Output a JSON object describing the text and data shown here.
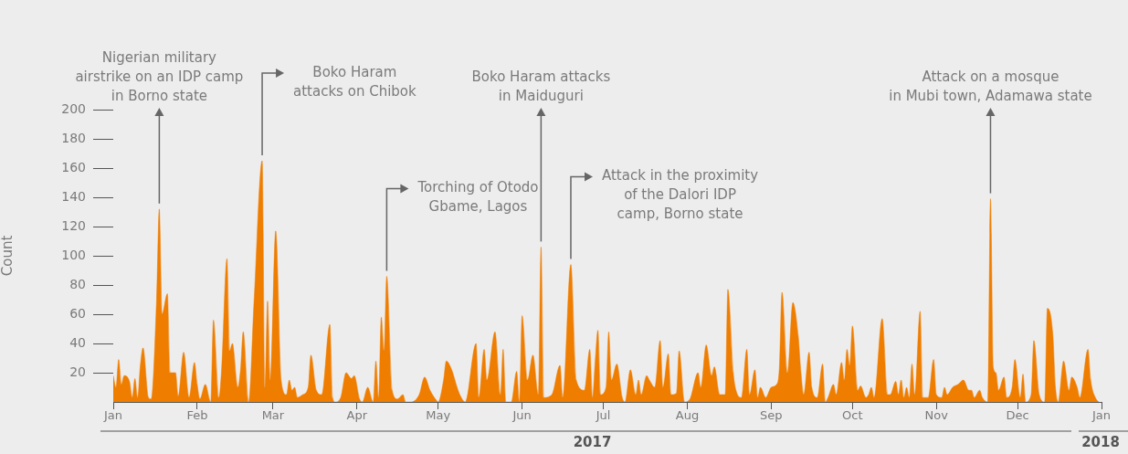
{
  "chart_data": {
    "type": "area",
    "ylabel": "Count",
    "color": "#ef7d00",
    "x": [
      "2017-01-01",
      "2017-01-02",
      "2017-01-03",
      "2017-01-04",
      "2017-01-05",
      "2017-01-07",
      "2017-01-08",
      "2017-01-09",
      "2017-01-10",
      "2017-01-11",
      "2017-01-12",
      "2017-01-14",
      "2017-01-15",
      "2017-01-17",
      "2017-01-18",
      "2017-01-19",
      "2017-01-21",
      "2017-01-22",
      "2017-01-24",
      "2017-01-25",
      "2017-01-27",
      "2017-01-29",
      "2017-01-31",
      "2017-02-01",
      "2017-02-02",
      "2017-02-04",
      "2017-02-06",
      "2017-02-07",
      "2017-02-09",
      "2017-02-10",
      "2017-02-12",
      "2017-02-13",
      "2017-02-14",
      "2017-02-16",
      "2017-02-17",
      "2017-02-18",
      "2017-02-20",
      "2017-02-22",
      "2017-02-25",
      "2017-02-26",
      "2017-02-27",
      "2017-02-28",
      "2017-03-02",
      "2017-03-04",
      "2017-03-06",
      "2017-03-07",
      "2017-03-08",
      "2017-03-09",
      "2017-03-10",
      "2017-03-12",
      "2017-03-14",
      "2017-03-15",
      "2017-03-17",
      "2017-03-19",
      "2017-03-22",
      "2017-03-23",
      "2017-03-24",
      "2017-03-26",
      "2017-03-28",
      "2017-03-30",
      "2017-03-31",
      "2017-04-02",
      "2017-04-03",
      "2017-04-05",
      "2017-04-07",
      "2017-04-08",
      "2017-04-09",
      "2017-04-10",
      "2017-04-11",
      "2017-04-12",
      "2017-04-14",
      "2017-04-16",
      "2017-04-18",
      "2017-04-19",
      "2017-04-21",
      "2017-04-24",
      "2017-04-26",
      "2017-04-28",
      "2017-04-30",
      "2017-05-01",
      "2017-05-03",
      "2017-05-04",
      "2017-05-06",
      "2017-05-08",
      "2017-05-09",
      "2017-05-11",
      "2017-05-15",
      "2017-05-16",
      "2017-05-18",
      "2017-05-19",
      "2017-05-22",
      "2017-05-24",
      "2017-05-25",
      "2017-05-26",
      "2017-05-28",
      "2017-05-30",
      "2017-05-31",
      "2017-06-01",
      "2017-06-03",
      "2017-06-05",
      "2017-06-07",
      "2017-06-08",
      "2017-06-09",
      "2017-06-12",
      "2017-06-15",
      "2017-06-16",
      "2017-06-19",
      "2017-06-21",
      "2017-06-24",
      "2017-06-26",
      "2017-06-27",
      "2017-06-28",
      "2017-06-29",
      "2017-06-30",
      "2017-07-02",
      "2017-07-03",
      "2017-07-04",
      "2017-07-06",
      "2017-07-08",
      "2017-07-09",
      "2017-07-11",
      "2017-07-13",
      "2017-07-14",
      "2017-07-15",
      "2017-07-17",
      "2017-07-18",
      "2017-07-20",
      "2017-07-22",
      "2017-07-23",
      "2017-07-25",
      "2017-07-26",
      "2017-07-28",
      "2017-07-29",
      "2017-07-31",
      "2017-08-02",
      "2017-08-05",
      "2017-08-06",
      "2017-08-08",
      "2017-08-10",
      "2017-08-11",
      "2017-08-13",
      "2017-08-15",
      "2017-08-16",
      "2017-08-18",
      "2017-08-19",
      "2017-08-21",
      "2017-08-23",
      "2017-08-24",
      "2017-08-26",
      "2017-08-27",
      "2017-08-28",
      "2017-08-30",
      "2017-09-01",
      "2017-09-03",
      "2017-09-04",
      "2017-09-05",
      "2017-09-07",
      "2017-09-09",
      "2017-09-11",
      "2017-09-12",
      "2017-09-13",
      "2017-09-15",
      "2017-09-16",
      "2017-09-18",
      "2017-09-20",
      "2017-09-21",
      "2017-09-22",
      "2017-09-24",
      "2017-09-25",
      "2017-09-27",
      "2017-09-28",
      "2017-09-29",
      "2017-09-30",
      "2017-10-01",
      "2017-10-03",
      "2017-10-04",
      "2017-10-06",
      "2017-10-07",
      "2017-10-08",
      "2017-10-09",
      "2017-10-12",
      "2017-10-14",
      "2017-10-15",
      "2017-10-17",
      "2017-10-18",
      "2017-10-19",
      "2017-10-20",
      "2017-10-21",
      "2017-10-22",
      "2017-10-23",
      "2017-10-24",
      "2017-10-26",
      "2017-10-27",
      "2017-10-29",
      "2017-10-31",
      "2017-11-01",
      "2017-11-03",
      "2017-11-04",
      "2017-11-05",
      "2017-11-07",
      "2017-11-09",
      "2017-11-11",
      "2017-11-13",
      "2017-11-14",
      "2017-11-15",
      "2017-11-17",
      "2017-11-18",
      "2017-11-20",
      "2017-11-21",
      "2017-11-22",
      "2017-11-23",
      "2017-11-24",
      "2017-11-26",
      "2017-11-27",
      "2017-11-29",
      "2017-11-30",
      "2017-12-02",
      "2017-12-03",
      "2017-12-04",
      "2017-12-06",
      "2017-12-07",
      "2017-12-09",
      "2017-12-11",
      "2017-12-12",
      "2017-12-14",
      "2017-12-15",
      "2017-12-16",
      "2017-12-18",
      "2017-12-20",
      "2017-12-21",
      "2017-12-23",
      "2017-12-24",
      "2017-12-27",
      "2017-12-28",
      "2017-12-30",
      "2017-12-31"
    ],
    "values": [
      18,
      10,
      29,
      12,
      18,
      14,
      3,
      16,
      3,
      25,
      37,
      3,
      2,
      70,
      132,
      60,
      74,
      20,
      20,
      4,
      34,
      3,
      27,
      12,
      2,
      12,
      0,
      56,
      3,
      22,
      98,
      35,
      40,
      10,
      22,
      48,
      0,
      69,
      165,
      10,
      69,
      15,
      117,
      15,
      5,
      15,
      8,
      10,
      3,
      5,
      10,
      32,
      8,
      5,
      53,
      3,
      0,
      3,
      20,
      16,
      18,
      2,
      0,
      10,
      0,
      28,
      3,
      58,
      35,
      86,
      8,
      2,
      5,
      0,
      0,
      5,
      17,
      8,
      2,
      0,
      15,
      28,
      22,
      10,
      5,
      0,
      40,
      3,
      36,
      15,
      48,
      5,
      36,
      0,
      0,
      21,
      0,
      59,
      15,
      32,
      5,
      106,
      3,
      5,
      25,
      3,
      94,
      15,
      8,
      36,
      3,
      28,
      49,
      5,
      10,
      48,
      15,
      26,
      3,
      0,
      22,
      5,
      15,
      5,
      18,
      15,
      10,
      42,
      10,
      33,
      5,
      6,
      35,
      0,
      2,
      20,
      10,
      39,
      18,
      24,
      5,
      5,
      77,
      20,
      8,
      3,
      36,
      5,
      22,
      3,
      10,
      3,
      10,
      12,
      23,
      75,
      20,
      68,
      45,
      20,
      5,
      34,
      10,
      3,
      26,
      0,
      3,
      12,
      5,
      27,
      15,
      36,
      25,
      52,
      8,
      11,
      3,
      5,
      10,
      3,
      57,
      5,
      5,
      14,
      5,
      15,
      3,
      10,
      3,
      26,
      5,
      62,
      3,
      3,
      29,
      5,
      3,
      10,
      5,
      10,
      12,
      15,
      8,
      8,
      3,
      8,
      3,
      0,
      139,
      24,
      20,
      8,
      17,
      3,
      10,
      29,
      3,
      19,
      0,
      5,
      42,
      5,
      0,
      64,
      47,
      10,
      0,
      28,
      8,
      17,
      10,
      3,
      36,
      15,
      2,
      0
    ],
    "xlim": [
      "2017-01-01",
      "2018-01-01"
    ],
    "xticks": [
      {
        "value": "2017-01-01",
        "label": "Jan"
      },
      {
        "value": "2017-02-01",
        "label": "Feb"
      },
      {
        "value": "2017-03-01",
        "label": "Mar"
      },
      {
        "value": "2017-04-01",
        "label": "Apr"
      },
      {
        "value": "2017-05-01",
        "label": "May"
      },
      {
        "value": "2017-06-01",
        "label": "Jun"
      },
      {
        "value": "2017-07-01",
        "label": "Jul"
      },
      {
        "value": "2017-08-01",
        "label": "Aug"
      },
      {
        "value": "2017-09-01",
        "label": "Sep"
      },
      {
        "value": "2017-10-01",
        "label": "Oct"
      },
      {
        "value": "2017-11-01",
        "label": "Nov"
      },
      {
        "value": "2017-12-01",
        "label": "Dec"
      },
      {
        "value": "2018-01-01",
        "label": "Jan"
      }
    ],
    "ylim": [
      0,
      200
    ],
    "yticks": [
      20,
      40,
      60,
      80,
      100,
      120,
      140,
      160,
      180,
      200
    ],
    "grid": false,
    "legend": false,
    "annotations": [
      {
        "text": "Nigerian military\nairstrike on an IDP camp\nin Borno state",
        "x": "2017-01-18",
        "y": 132
      },
      {
        "text": "Boko Haram\nattacks on Chibok",
        "x": "2017-02-25",
        "y": 165
      },
      {
        "text": "Torching of Otodo\nGbame, Lagos",
        "x": "2017-04-12",
        "y": 86
      },
      {
        "text": "Boko Haram attacks\nin Maiduguri",
        "x": "2017-06-08",
        "y": 106
      },
      {
        "text": "Attack in the proximity\nof the Dalori IDP\ncamp, Borno state",
        "x": "2017-06-19",
        "y": 94
      },
      {
        "text": "Attack on a mosque\nin Mubi town, Adamawa state",
        "x": "2017-11-21",
        "y": 139
      },
      "2017",
      "2018"
    ]
  }
}
